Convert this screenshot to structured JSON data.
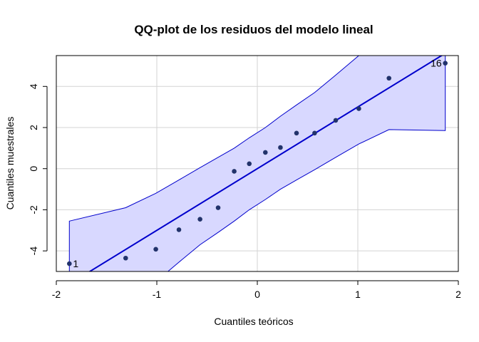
{
  "chart_data": {
    "type": "scatter",
    "title": "QQ-plot de los residuos del modelo lineal",
    "xlabel": "Cuantiles teóricos",
    "ylabel": "Cuantiles muestrales",
    "xlim": [
      -2.0,
      2.0
    ],
    "ylim": [
      -5.0,
      5.5
    ],
    "x_ticks": [
      {
        "value": -2,
        "label": "-2"
      },
      {
        "value": -1,
        "label": "-1"
      },
      {
        "value": 0,
        "label": "0"
      },
      {
        "value": 1,
        "label": "1"
      },
      {
        "value": 2,
        "label": "2"
      }
    ],
    "y_ticks": [
      {
        "value": -4,
        "label": "-4"
      },
      {
        "value": -2,
        "label": "-2"
      },
      {
        "value": 0,
        "label": "0"
      },
      {
        "value": 2,
        "label": "2"
      },
      {
        "value": 4,
        "label": "4"
      }
    ],
    "grid": true,
    "points": [
      {
        "x": -1.87,
        "y": -4.62
      },
      {
        "x": -1.31,
        "y": -4.35
      },
      {
        "x": -1.01,
        "y": -3.92
      },
      {
        "x": -0.78,
        "y": -2.97
      },
      {
        "x": -0.57,
        "y": -2.46
      },
      {
        "x": -0.39,
        "y": -1.9
      },
      {
        "x": -0.23,
        "y": -0.13
      },
      {
        "x": -0.08,
        "y": 0.24
      },
      {
        "x": 0.08,
        "y": 0.79
      },
      {
        "x": 0.23,
        "y": 1.03
      },
      {
        "x": 0.39,
        "y": 1.73
      },
      {
        "x": 0.57,
        "y": 1.73
      },
      {
        "x": 0.78,
        "y": 2.35
      },
      {
        "x": 1.01,
        "y": 2.92
      },
      {
        "x": 1.31,
        "y": 4.4
      },
      {
        "x": 1.87,
        "y": 5.13
      }
    ],
    "point_labels": [
      {
        "text": "1",
        "point_index": 0,
        "side": "right"
      },
      {
        "text": "16",
        "point_index": 15,
        "side": "left"
      }
    ],
    "reference_line": {
      "intercept": 0.0,
      "slope": 3.0
    },
    "confidence_band": {
      "x": [
        -1.87,
        -1.31,
        -1.01,
        -0.78,
        -0.57,
        -0.39,
        -0.23,
        -0.08,
        0.08,
        0.23,
        0.39,
        0.57,
        0.78,
        1.01,
        1.31,
        1.87
      ],
      "upper": [
        -2.55,
        -1.9,
        -1.2,
        -0.55,
        0.05,
        0.55,
        1.0,
        1.5,
        2.0,
        2.55,
        3.1,
        3.7,
        4.55,
        5.5,
        6.7,
        6.9
      ],
      "lower": [
        -6.9,
        -6.7,
        -5.5,
        -4.55,
        -3.7,
        -3.1,
        -2.55,
        -2.0,
        -1.5,
        -1.0,
        -0.55,
        -0.05,
        0.55,
        1.2,
        1.9,
        1.85
      ]
    },
    "colors": {
      "band_fill": "#d8d8ff",
      "band_stroke": "#0000cc",
      "reference_line": "#0000cc",
      "points": "#22336b",
      "grid": "#d3d3d3",
      "axis": "#000000"
    }
  }
}
